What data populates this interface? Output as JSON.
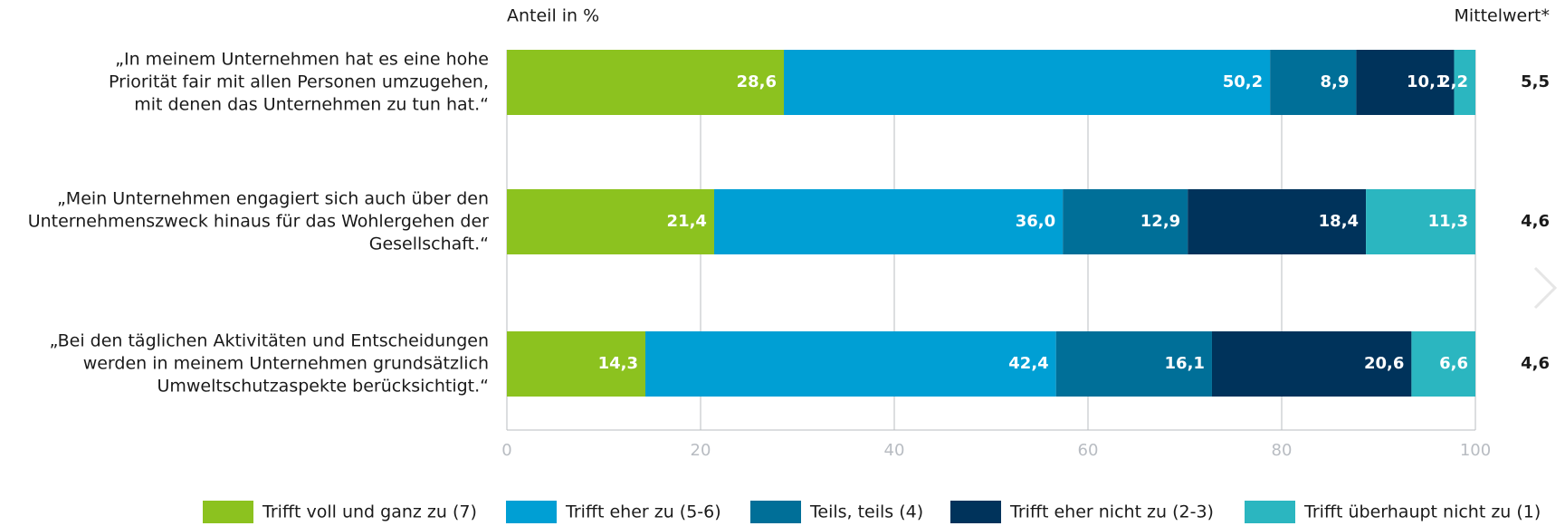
{
  "chart_data": {
    "type": "stacked_barh",
    "x_label": "Anteil in %",
    "mean_label": "Mittelwert*",
    "categories": [
      [
        "„In meinem Unternehmen hat es eine hohe",
        "Priorität fair mit allen Personen umzugehen,",
        "mit denen das Unternehmen zu tun hat.“"
      ],
      [
        "„Mein Unternehmen engagiert sich auch über den",
        "Unternehmenszweck hinaus für das Wohlergehen der",
        "Gesellschaft.“"
      ],
      [
        "„Bei den täglichen Aktivitäten und Entscheidungen",
        "werden in meinem Unternehmen grundsätzlich",
        "Umweltschutzaspekte berücksichtigt.“"
      ]
    ],
    "series": [
      {
        "name": "Trifft voll und ganz zu (7)",
        "color": "#8cc21f",
        "values": [
          28.6,
          21.4,
          14.3
        ],
        "value_labels": [
          "28,6",
          "21,4",
          "14,3"
        ]
      },
      {
        "name": "Trifft eher zu (5-6)",
        "color": "#009fd4",
        "values": [
          50.2,
          36.0,
          42.4
        ],
        "value_labels": [
          "50,2",
          "36,0",
          "42,4"
        ]
      },
      {
        "name": "Teils, teils (4)",
        "color": "#006f98",
        "values": [
          8.9,
          12.9,
          16.1
        ],
        "value_labels": [
          "8,9",
          "12,9",
          "16,1"
        ]
      },
      {
        "name": "Trifft eher nicht zu (2-3)",
        "color": "#00335b",
        "values": [
          10.1,
          18.4,
          20.6
        ],
        "value_labels": [
          "10,1",
          "18,4",
          "20,6"
        ]
      },
      {
        "name": "Trifft überhaupt nicht zu (1)",
        "color": "#2bb6c0",
        "values": [
          2.2,
          11.3,
          6.6
        ],
        "value_labels": [
          "2,2",
          "11,3",
          "6,6"
        ]
      }
    ],
    "means": {
      "values": [
        5.5,
        4.6,
        4.6
      ],
      "value_labels": [
        "5,5",
        "4,6",
        "4,6"
      ]
    },
    "xlim": [
      0,
      100
    ],
    "xticks": [
      0,
      20,
      40,
      60,
      80,
      100
    ],
    "grid": true,
    "legend": "bottom"
  }
}
